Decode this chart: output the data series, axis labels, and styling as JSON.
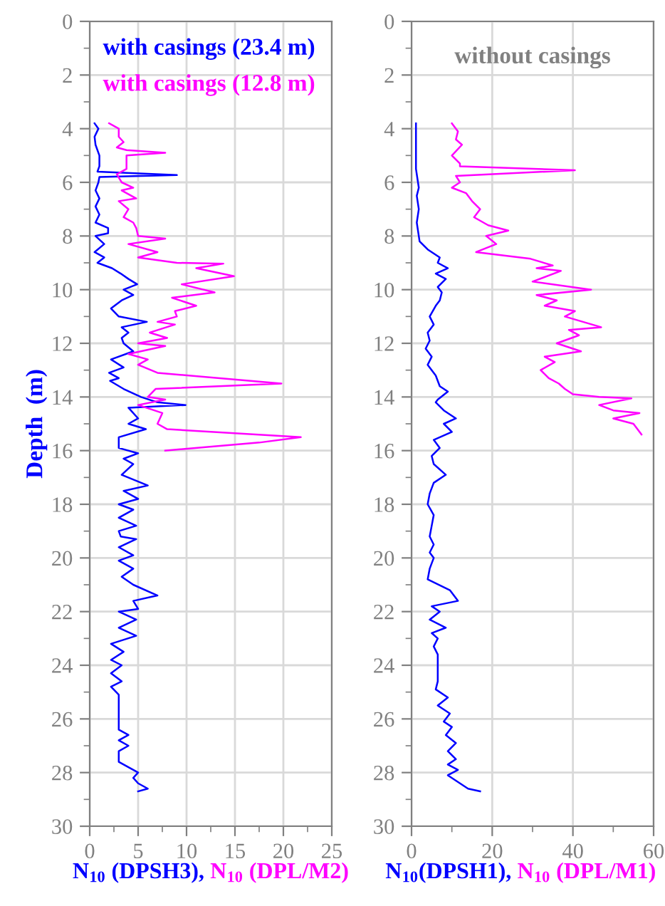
{
  "chart_data": [
    {
      "type": "line",
      "xlabel": "N$_{10}$ (DPSH3), N$_{10}$ (DPL/M2)",
      "ylabel": "Depth  (m)",
      "xlim": [
        0,
        25
      ],
      "ylim": [
        30,
        0
      ],
      "xticks": [
        0,
        {
          "value": 2.5,
          "label": null
        },
        5,
        {
          "value": 7.5,
          "label": null
        },
        10,
        {
          "value": 12.5,
          "label": null
        },
        15,
        {
          "value": 17.5,
          "label": null
        },
        20,
        {
          "value": 22.5,
          "label": null
        },
        25
      ],
      "yticks": [
        0,
        {
          "value": 1,
          "label": null
        },
        2,
        {
          "value": 3,
          "label": null
        },
        4,
        {
          "value": 5,
          "label": null
        },
        6,
        {
          "value": 7,
          "label": null
        },
        8,
        {
          "value": 9,
          "label": null
        },
        10,
        {
          "value": 11,
          "label": null
        },
        12,
        {
          "value": 13,
          "label": null
        },
        14,
        {
          "value": 15,
          "label": null
        },
        16,
        {
          "value": 17,
          "label": null
        },
        18,
        {
          "value": 19,
          "label": null
        },
        20,
        {
          "value": 21,
          "label": null
        },
        22,
        {
          "value": 23,
          "label": null
        },
        24,
        {
          "value": 25,
          "label": null
        },
        26,
        {
          "value": 27,
          "label": null
        },
        28,
        {
          "value": 29,
          "label": null
        },
        30
      ],
      "grid": true,
      "legend": "top right",
      "marker": "none",
      "line_style": "solid",
      "series": [
        {
          "name": "with casings (23.4 m)",
          "color": "#0000ff",
          "x": [
            0.5,
            0.9,
            0.5,
            0.6,
            1.0,
            1.0,
            0.8,
            9.0,
            1.0,
            0.9,
            0.6,
            1.0,
            0.6,
            1.0,
            0.6,
            1.9,
            1.9,
            0.6,
            1.5,
            0.5,
            1.5,
            0.8,
            2.3,
            3.2,
            4.0,
            4.9,
            3.5,
            4.5,
            3.3,
            2.2,
            3.0,
            5.9,
            3.3,
            4.0,
            3.3,
            3.5,
            4.5,
            2.2,
            3.5,
            2.0,
            3.0,
            2.1,
            3.5,
            5.3,
            7.0,
            9.9,
            4.0,
            5.0,
            4.0,
            5.8,
            3.0,
            3.0,
            5.0,
            3.5,
            4.5,
            3.3,
            6.0,
            3.5,
            5.0,
            3.0,
            4.5,
            3.0,
            4.8,
            3.0,
            3.2,
            4.8,
            3.0,
            4.5,
            3.0,
            4.5,
            3.3,
            4.5,
            7.0,
            4.5,
            5.0,
            3.0,
            4.8,
            3.0,
            4.8,
            2.2,
            3.5,
            2.2,
            3.3,
            2.2,
            3.3,
            2.2,
            3.0,
            3.0,
            3.0,
            4.0,
            3.0,
            4.0,
            3.0,
            3.0,
            4.5,
            5.0,
            4.5,
            5.0,
            6.0,
            5.0
          ],
          "values": [
            3.8,
            4.0,
            4.3,
            4.6,
            5.0,
            5.4,
            5.6,
            5.73,
            5.8,
            6.0,
            6.3,
            6.6,
            6.9,
            7.2,
            7.5,
            7.7,
            7.9,
            8.0,
            8.3,
            8.6,
            8.8,
            9.0,
            9.2,
            9.4,
            9.6,
            9.8,
            10.0,
            10.2,
            10.4,
            10.7,
            11.0,
            11.2,
            11.4,
            11.6,
            11.8,
            12.0,
            12.3,
            12.6,
            12.9,
            13.1,
            13.3,
            13.4,
            13.7,
            14.0,
            14.2,
            14.3,
            14.4,
            14.8,
            15.0,
            15.2,
            15.5,
            15.9,
            16.1,
            16.3,
            16.5,
            16.9,
            17.3,
            17.5,
            17.8,
            18.0,
            18.2,
            18.5,
            18.8,
            19.0,
            19.2,
            19.3,
            19.6,
            19.9,
            20.1,
            20.4,
            20.7,
            21.0,
            21.4,
            21.6,
            21.9,
            22.0,
            22.3,
            22.6,
            22.9,
            23.2,
            23.5,
            23.8,
            24.0,
            24.3,
            24.6,
            24.8,
            25.1,
            25.3,
            26.4,
            26.6,
            26.8,
            27.0,
            27.2,
            27.6,
            27.9,
            28.0,
            28.2,
            28.4,
            28.6,
            28.7
          ]
        },
        {
          "name": "with casings (12.8 m)",
          "color": "#ff00ff",
          "x": [
            2.0,
            3.0,
            3.0,
            3.5,
            2.8,
            3.8,
            7.8,
            3.8,
            3.8,
            2.8,
            3.3,
            4.5,
            3.3,
            4.8,
            3.0,
            4.0,
            3.5,
            4.5,
            4.8,
            5.0,
            7.8,
            4.0,
            7.0,
            5.0,
            9.0,
            13.8,
            11.0,
            14.9,
            9.5,
            12.9,
            8.5,
            11.0,
            8.8,
            9.0,
            7.0,
            8.8,
            6.2,
            8.0,
            5.0,
            7.8,
            4.0,
            6.0,
            5.0,
            7.0,
            19.8,
            6.8,
            6.0,
            7.8,
            5.0,
            7.5,
            7.0,
            8.0,
            21.8,
            17.5,
            7.8
          ],
          "values": [
            3.8,
            4.0,
            4.3,
            4.5,
            4.7,
            4.8,
            4.9,
            5.0,
            5.5,
            5.7,
            6.0,
            6.2,
            6.3,
            6.6,
            6.7,
            7.0,
            7.3,
            7.5,
            7.7,
            8.0,
            8.1,
            8.3,
            8.6,
            8.8,
            9.0,
            9.03,
            9.2,
            9.5,
            9.8,
            10.1,
            10.3,
            10.6,
            10.8,
            11.0,
            11.2,
            11.3,
            11.6,
            11.8,
            12.0,
            12.1,
            12.4,
            12.6,
            12.8,
            13.1,
            13.5,
            13.7,
            14.0,
            14.1,
            14.3,
            14.6,
            15.0,
            15.2,
            15.5,
            15.7,
            16.0
          ]
        }
      ]
    },
    {
      "type": "line",
      "title": "without casings",
      "xlabel": "N$_{10}$(DPSH1), N$_{10}$ (DPL/M1)",
      "xlim": [
        0,
        60
      ],
      "ylim": [
        30,
        0
      ],
      "xticks": [
        0,
        {
          "value": 10,
          "label": null
        },
        20,
        {
          "value": 30,
          "label": null
        },
        40,
        {
          "value": 50,
          "label": null
        },
        60
      ],
      "yticks": [
        0,
        {
          "value": 1,
          "label": null
        },
        2,
        {
          "value": 3,
          "label": null
        },
        4,
        {
          "value": 5,
          "label": null
        },
        6,
        {
          "value": 7,
          "label": null
        },
        8,
        {
          "value": 9,
          "label": null
        },
        10,
        {
          "value": 11,
          "label": null
        },
        12,
        {
          "value": 13,
          "label": null
        },
        14,
        {
          "value": 15,
          "label": null
        },
        16,
        {
          "value": 17,
          "label": null
        },
        18,
        {
          "value": 19,
          "label": null
        },
        20,
        {
          "value": 21,
          "label": null
        },
        22,
        {
          "value": 23,
          "label": null
        },
        24,
        {
          "value": 25,
          "label": null
        },
        26,
        {
          "value": 27,
          "label": null
        },
        28,
        {
          "value": 29,
          "label": null
        },
        30
      ],
      "grid": true,
      "marker": "none",
      "line_style": "solid",
      "series": [
        {
          "color": "#0000ff",
          "x": [
            1.1,
            1.1,
            1.5,
            1.8,
            1.3,
            1.8,
            1.3,
            1.8,
            2.0,
            4.0,
            7.0,
            6.5,
            9.0,
            6.0,
            8.5,
            6.5,
            7.5,
            7.0,
            6.0,
            4.5,
            5.5,
            4.0,
            4.5,
            3.5,
            5.0,
            4.0,
            6.0,
            7.0,
            9.0,
            6.5,
            6.0,
            8.0,
            11.0,
            8.0,
            10.0,
            5.5,
            7.0,
            5.0,
            5.5,
            8.5,
            5.5,
            4.5,
            4.0,
            5.5,
            5.0,
            4.5,
            5.5,
            4.5,
            5.5,
            4.5,
            4.0,
            9.5,
            11.5,
            5.0,
            7.0,
            4.5,
            8.5,
            5.0,
            6.5,
            5.5,
            6.5,
            6.5,
            6.5,
            6.0,
            9.0,
            6.5,
            9.5,
            8.0,
            10.0,
            8.5,
            11.0,
            9.0,
            11.0,
            9.0,
            11.5,
            9.0,
            11.0,
            14.0,
            17.0
          ],
          "values": [
            3.8,
            5.5,
            5.9,
            6.2,
            6.5,
            7.0,
            7.5,
            8.0,
            8.2,
            8.5,
            8.8,
            9.0,
            9.2,
            9.4,
            9.6,
            9.9,
            10.1,
            10.4,
            10.6,
            11.0,
            11.3,
            11.6,
            11.9,
            12.2,
            12.5,
            12.8,
            13.2,
            13.6,
            13.8,
            14.1,
            14.2,
            14.5,
            14.8,
            15.0,
            15.3,
            15.6,
            15.9,
            16.2,
            16.5,
            16.9,
            17.2,
            17.6,
            18.0,
            18.4,
            18.8,
            19.2,
            19.5,
            19.8,
            20.0,
            20.4,
            20.8,
            21.2,
            21.6,
            21.8,
            22.0,
            22.3,
            22.6,
            22.8,
            23.0,
            23.3,
            23.6,
            24.0,
            24.6,
            24.9,
            25.2,
            25.5,
            25.8,
            26.1,
            26.3,
            26.6,
            26.9,
            27.2,
            27.5,
            27.7,
            27.9,
            28.1,
            28.3,
            28.6,
            28.7
          ]
        },
        {
          "color": "#ff00ff",
          "x": [
            10.0,
            11.5,
            11.0,
            12.5,
            10.0,
            12.0,
            12.0,
            40.5,
            11.0,
            12.0,
            10.0,
            13.5,
            15.0,
            17.0,
            15.5,
            19.0,
            24.0,
            18.5,
            21.0,
            16.0,
            29.5,
            35.0,
            31.0,
            37.0,
            30.0,
            44.5,
            31.0,
            36.0,
            33.0,
            40.5,
            38.0,
            47.0,
            39.0,
            41.5,
            36.0,
            42.0,
            33.0,
            35.5,
            32.0,
            34.0,
            36.5,
            38.0,
            40.0,
            46.5,
            54.5,
            46.5,
            50.0,
            56.5,
            50.0,
            55.0,
            57.0
          ],
          "values": [
            3.8,
            4.1,
            4.4,
            4.6,
            5.0,
            5.3,
            5.4,
            5.55,
            5.76,
            6.0,
            6.2,
            6.4,
            6.7,
            7.0,
            7.3,
            7.6,
            7.8,
            8.0,
            8.3,
            8.6,
            8.85,
            9.1,
            9.2,
            9.3,
            9.7,
            10.0,
            10.2,
            10.4,
            10.6,
            10.8,
            11.0,
            11.4,
            11.5,
            11.7,
            12.0,
            12.3,
            12.5,
            12.7,
            13.0,
            13.3,
            13.5,
            13.7,
            13.9,
            14.0,
            14.05,
            14.3,
            14.5,
            14.6,
            14.8,
            15.0,
            15.4
          ]
        }
      ]
    }
  ]
}
